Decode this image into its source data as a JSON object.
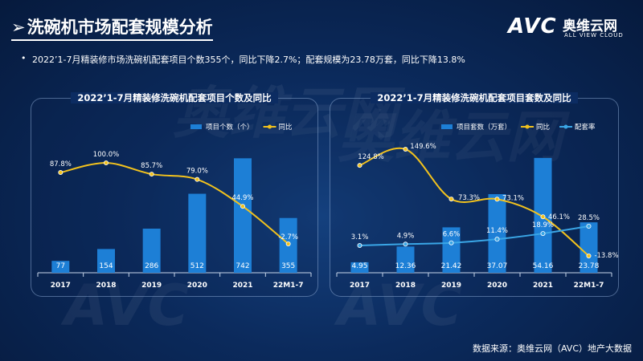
{
  "header": {
    "title": "洗碗机市场配套规模分析",
    "arrow": "➢",
    "summary": "2022’1-7月精装修市场洗碗机配套项目个数355个，同比下降2.7%；配套规模为23.78万套，同比下降13.8%",
    "bullet": "•"
  },
  "logo": {
    "mark": "AVC",
    "cn": "奥维云网",
    "en": "ALL VIEW CLOUD"
  },
  "watermark": [
    "奥维云网",
    "AVC"
  ],
  "footer": {
    "source": "数据来源：奥维云网（AVC）地产大数据"
  },
  "colors": {
    "bar": "#1d7fd6",
    "line": "#f2c21d",
    "rate": "#3aa6e6"
  },
  "chart_data": [
    {
      "type": "bar",
      "title": "2022’1-7月精装修洗碗机配套项目个数及同比",
      "categories": [
        "2017",
        "2018",
        "2019",
        "2020",
        "2021",
        "22M1-7"
      ],
      "series": [
        {
          "name": "项目个数（个）",
          "type": "bar",
          "values": [
            77,
            154,
            286,
            512,
            742,
            355
          ],
          "labels": [
            "77",
            "154",
            "286",
            "512",
            "742",
            "355"
          ]
        },
        {
          "name": "同比",
          "type": "line",
          "values": [
            87.8,
            100.0,
            85.7,
            79.0,
            44.9,
            -2.7
          ],
          "labels": [
            "87.8%",
            "100.0%",
            "85.7%",
            "79.0%",
            "44.9%",
            "-2.7%"
          ]
        }
      ],
      "legend": "top-right"
    },
    {
      "type": "bar",
      "title": "2022’1-7月精装修洗碗机配套项目套数及同比",
      "categories": [
        "2017",
        "2018",
        "2019",
        "2020",
        "2021",
        "22M1-7"
      ],
      "series": [
        {
          "name": "项目套数（万套）",
          "type": "bar",
          "values": [
            4.95,
            12.36,
            21.42,
            37.07,
            54.16,
            23.78
          ],
          "labels": [
            "4.95",
            "12.36",
            "21.42",
            "37.07",
            "54.16",
            "23.78"
          ]
        },
        {
          "name": "同比",
          "type": "line",
          "values": [
            124.8,
            149.6,
            73.3,
            73.1,
            46.1,
            -13.8
          ],
          "labels": [
            "124.8%",
            "149.6%",
            "73.3%",
            "73.1%",
            "46.1%",
            "-13.8%"
          ]
        },
        {
          "name": "配套率",
          "type": "line",
          "values": [
            3.1,
            4.9,
            6.6,
            11.4,
            18.9,
            28.5
          ],
          "labels": [
            "3.1%",
            "4.9%",
            "6.6%",
            "11.4%",
            "18.9%",
            "28.5%"
          ]
        }
      ],
      "legend": "top-right"
    }
  ]
}
